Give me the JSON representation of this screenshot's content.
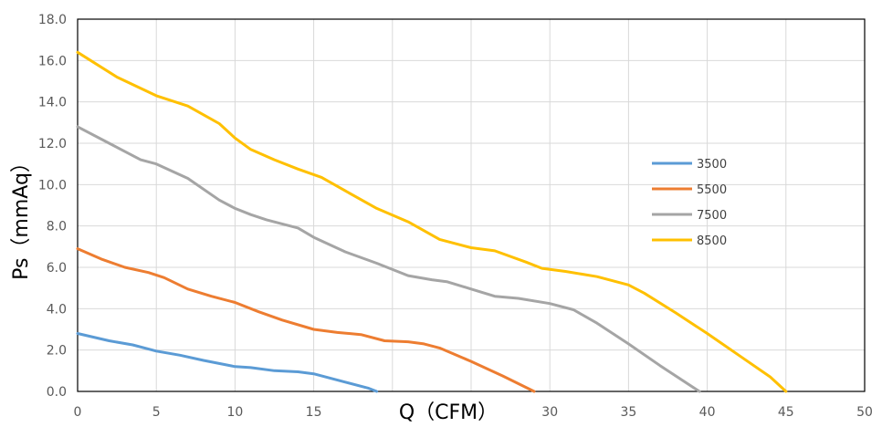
{
  "chart_data": {
    "type": "line",
    "title": "",
    "xlabel": "Q（CFM）",
    "ylabel": "Ps（mmAq）",
    "xlim": [
      0,
      50
    ],
    "ylim": [
      0,
      18
    ],
    "x_ticks": [
      "0",
      "5",
      "10",
      "15",
      "20",
      "25",
      "30",
      "35",
      "40",
      "45",
      "50"
    ],
    "y_ticks": [
      "0.0",
      "2.0",
      "4.0",
      "6.0",
      "8.0",
      "10.0",
      "12.0",
      "14.0",
      "16.0",
      "18.0"
    ],
    "grid": true,
    "legend_position": "right",
    "series": [
      {
        "name": "3500",
        "color": "#5B9BD5",
        "points": [
          [
            0,
            2.8
          ],
          [
            2,
            2.45
          ],
          [
            3.5,
            2.25
          ],
          [
            5,
            1.95
          ],
          [
            6.5,
            1.75
          ],
          [
            8,
            1.5
          ],
          [
            10,
            1.2
          ],
          [
            11,
            1.15
          ],
          [
            12.5,
            1.0
          ],
          [
            14,
            0.95
          ],
          [
            15,
            0.85
          ],
          [
            17,
            0.45
          ],
          [
            18.5,
            0.15
          ],
          [
            19,
            0.0
          ]
        ]
      },
      {
        "name": "5500",
        "color": "#ED7D31",
        "points": [
          [
            0,
            6.9
          ],
          [
            1.5,
            6.4
          ],
          [
            3,
            6.0
          ],
          [
            4.5,
            5.75
          ],
          [
            5.5,
            5.5
          ],
          [
            7,
            4.95
          ],
          [
            8.5,
            4.6
          ],
          [
            10,
            4.3
          ],
          [
            11.5,
            3.85
          ],
          [
            13,
            3.45
          ],
          [
            15,
            3.0
          ],
          [
            16.5,
            2.85
          ],
          [
            18,
            2.75
          ],
          [
            19.5,
            2.45
          ],
          [
            21,
            2.4
          ],
          [
            22,
            2.3
          ],
          [
            23,
            2.1
          ],
          [
            25,
            1.45
          ],
          [
            27,
            0.75
          ],
          [
            29,
            0.0
          ]
        ]
      },
      {
        "name": "7500",
        "color": "#A5A5A5",
        "points": [
          [
            0,
            12.8
          ],
          [
            2,
            12.0
          ],
          [
            4,
            11.2
          ],
          [
            5,
            11.0
          ],
          [
            7,
            10.3
          ],
          [
            9,
            9.25
          ],
          [
            10,
            8.85
          ],
          [
            11,
            8.55
          ],
          [
            12,
            8.3
          ],
          [
            14,
            7.9
          ],
          [
            15,
            7.45
          ],
          [
            17,
            6.75
          ],
          [
            19,
            6.2
          ],
          [
            21,
            5.6
          ],
          [
            22.5,
            5.4
          ],
          [
            23.5,
            5.3
          ],
          [
            25,
            4.95
          ],
          [
            26.5,
            4.6
          ],
          [
            28,
            4.5
          ],
          [
            30,
            4.25
          ],
          [
            31.5,
            3.95
          ],
          [
            33,
            3.3
          ],
          [
            35,
            2.3
          ],
          [
            37,
            1.25
          ],
          [
            39.5,
            0.0
          ]
        ]
      },
      {
        "name": "8500",
        "color": "#FFC000",
        "points": [
          [
            0,
            16.4
          ],
          [
            2.5,
            15.2
          ],
          [
            5,
            14.3
          ],
          [
            7,
            13.8
          ],
          [
            9,
            12.95
          ],
          [
            10,
            12.25
          ],
          [
            11,
            11.7
          ],
          [
            12.5,
            11.2
          ],
          [
            14,
            10.75
          ],
          [
            15.5,
            10.35
          ],
          [
            17,
            9.7
          ],
          [
            19,
            8.85
          ],
          [
            21,
            8.2
          ],
          [
            23,
            7.35
          ],
          [
            25,
            6.95
          ],
          [
            26.5,
            6.8
          ],
          [
            28.5,
            6.25
          ],
          [
            29.5,
            5.95
          ],
          [
            31,
            5.8
          ],
          [
            33,
            5.55
          ],
          [
            35,
            5.15
          ],
          [
            36,
            4.75
          ],
          [
            38,
            3.8
          ],
          [
            40,
            2.8
          ],
          [
            42,
            1.75
          ],
          [
            44,
            0.7
          ],
          [
            45,
            0.0
          ]
        ]
      }
    ]
  }
}
